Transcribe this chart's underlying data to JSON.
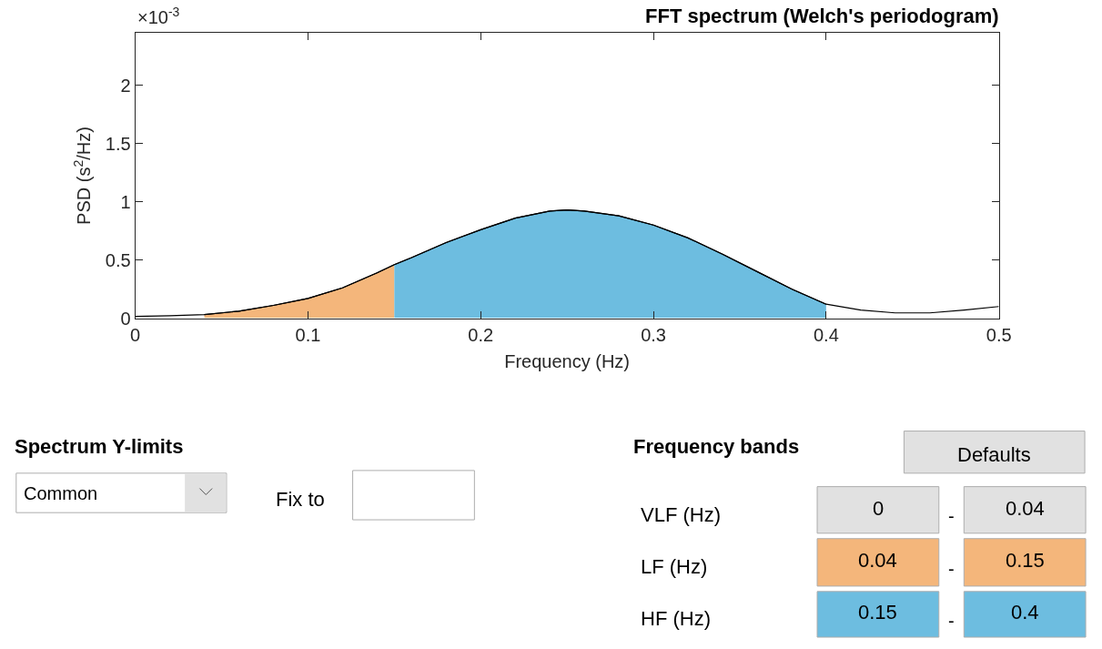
{
  "chart_data": [
    {
      "type": "line",
      "title": "FFT spectrum (Welch's periodogram)",
      "xlabel": "Frequency (Hz)",
      "ylabel": "PSD (s$^{2}$/Hz)",
      "annotations": [
        "×10$^{-3}$"
      ],
      "xlim": [
        0,
        0.5
      ],
      "xticks": [
        0,
        0.1,
        0.2,
        0.3,
        0.4,
        0.5
      ],
      "ylim": [
        0,
        2.45
      ],
      "yticks": [
        0,
        0.5,
        1,
        1.5,
        2
      ],
      "series": [
        {
          "type": "line",
          "color": "#000000",
          "x": [
            0,
            0.02,
            0.04,
            0.06,
            0.08,
            0.1,
            0.12,
            0.14,
            0.15,
            0.16,
            0.18,
            0.2,
            0.22,
            0.24,
            0.25,
            0.26,
            0.28,
            0.3,
            0.32,
            0.34,
            0.36,
            0.38,
            0.4,
            0.42,
            0.44,
            0.46,
            0.48,
            0.5
          ],
          "values": [
            0.015,
            0.02,
            0.03,
            0.06,
            0.11,
            0.17,
            0.26,
            0.39,
            0.46,
            0.52,
            0.65,
            0.76,
            0.86,
            0.92,
            0.93,
            0.92,
            0.88,
            0.8,
            0.69,
            0.55,
            0.4,
            0.25,
            0.12,
            0.07,
            0.045,
            0.045,
            0.07,
            0.1
          ]
        },
        {
          "type": "area",
          "color": "#f4b67b",
          "x": [
            0.04,
            0.06,
            0.08,
            0.1,
            0.12,
            0.14,
            0.15
          ],
          "values": [
            0.03,
            0.06,
            0.11,
            0.17,
            0.26,
            0.39,
            0.46
          ]
        },
        {
          "type": "area",
          "color": "#6dbde0",
          "x": [
            0.15,
            0.16,
            0.18,
            0.2,
            0.22,
            0.24,
            0.25,
            0.26,
            0.28,
            0.3,
            0.32,
            0.34,
            0.36,
            0.38,
            0.4
          ],
          "values": [
            0.46,
            0.52,
            0.65,
            0.76,
            0.86,
            0.92,
            0.93,
            0.92,
            0.88,
            0.8,
            0.69,
            0.55,
            0.4,
            0.25,
            0.12
          ]
        }
      ]
    },
    {
      "type": "other",
      "annotations": [
        "Spectrum Y-limits",
        "Common",
        "Fix to",
        "Frequency bands",
        "Defaults",
        "VLF (Hz)",
        "0",
        "-",
        "0.04",
        "LF (Hz)",
        "0.04",
        "-",
        "0.15",
        "HF (Hz)",
        "0.15",
        "-",
        "0.4"
      ]
    }
  ]
}
